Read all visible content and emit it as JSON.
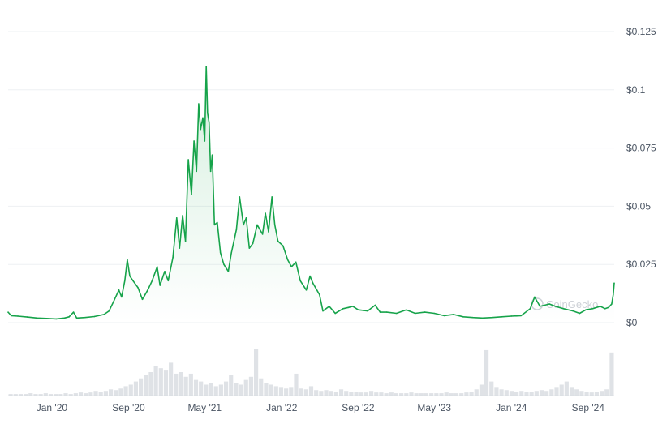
{
  "watermark": "CoinGecko",
  "colors": {
    "line": "#16a34a",
    "area_top": "#16a34a",
    "grid": "#eef0f3",
    "volume": "#d1d5db",
    "tick_text": "#4b5563"
  },
  "chart_data": {
    "type": "line",
    "title": "",
    "xlabel": "",
    "ylabel": "",
    "ylim": [
      0,
      0.125
    ],
    "xlim": [
      "2019-08-15",
      "2024-11-23"
    ],
    "grid": true,
    "y_ticks": [
      {
        "value": 0,
        "label": "$0"
      },
      {
        "value": 0.025,
        "label": "$0.025"
      },
      {
        "value": 0.05,
        "label": "$0.05"
      },
      {
        "value": 0.075,
        "label": "$0.075"
      },
      {
        "value": 0.1,
        "label": "$0.1"
      },
      {
        "value": 0.125,
        "label": "$0.125"
      }
    ],
    "x_ticks": [
      {
        "date": "2020-01-01",
        "label": "Jan '20"
      },
      {
        "date": "2020-09-01",
        "label": "Sep '20"
      },
      {
        "date": "2021-05-01",
        "label": "May '21"
      },
      {
        "date": "2022-01-01",
        "label": "Jan '22"
      },
      {
        "date": "2022-09-01",
        "label": "Sep '22"
      },
      {
        "date": "2023-05-01",
        "label": "May '23"
      },
      {
        "date": "2024-01-01",
        "label": "Jan '24"
      },
      {
        "date": "2024-09-01",
        "label": "Sep '24"
      }
    ],
    "series": [
      {
        "points": [
          [
            "2019-08-15",
            0.0045
          ],
          [
            "2019-08-25",
            0.003
          ],
          [
            "2019-09-15",
            0.0028
          ],
          [
            "2019-10-15",
            0.0024
          ],
          [
            "2019-11-15",
            0.002
          ],
          [
            "2019-12-15",
            0.0018
          ],
          [
            "2020-01-15",
            0.0016
          ],
          [
            "2020-02-10",
            0.002
          ],
          [
            "2020-02-25",
            0.0025
          ],
          [
            "2020-03-10",
            0.0045
          ],
          [
            "2020-03-20",
            0.002
          ],
          [
            "2020-04-15",
            0.0022
          ],
          [
            "2020-05-15",
            0.0026
          ],
          [
            "2020-06-15",
            0.0035
          ],
          [
            "2020-07-01",
            0.005
          ],
          [
            "2020-07-15",
            0.009
          ],
          [
            "2020-08-01",
            0.014
          ],
          [
            "2020-08-10",
            0.011
          ],
          [
            "2020-08-20",
            0.018
          ],
          [
            "2020-08-28",
            0.027
          ],
          [
            "2020-09-05",
            0.02
          ],
          [
            "2020-09-15",
            0.018
          ],
          [
            "2020-10-01",
            0.015
          ],
          [
            "2020-10-15",
            0.01
          ],
          [
            "2020-11-01",
            0.014
          ],
          [
            "2020-11-15",
            0.018
          ],
          [
            "2020-12-01",
            0.024
          ],
          [
            "2020-12-10",
            0.016
          ],
          [
            "2020-12-25",
            0.022
          ],
          [
            "2021-01-05",
            0.018
          ],
          [
            "2021-01-20",
            0.028
          ],
          [
            "2021-02-01",
            0.045
          ],
          [
            "2021-02-10",
            0.032
          ],
          [
            "2021-02-20",
            0.046
          ],
          [
            "2021-03-01",
            0.035
          ],
          [
            "2021-03-10",
            0.07
          ],
          [
            "2021-03-20",
            0.055
          ],
          [
            "2021-03-28",
            0.078
          ],
          [
            "2021-04-05",
            0.065
          ],
          [
            "2021-04-12",
            0.094
          ],
          [
            "2021-04-18",
            0.083
          ],
          [
            "2021-04-25",
            0.088
          ],
          [
            "2021-05-01",
            0.078
          ],
          [
            "2021-05-06",
            0.11
          ],
          [
            "2021-05-10",
            0.09
          ],
          [
            "2021-05-15",
            0.086
          ],
          [
            "2021-05-20",
            0.065
          ],
          [
            "2021-05-25",
            0.072
          ],
          [
            "2021-06-01",
            0.042
          ],
          [
            "2021-06-10",
            0.043
          ],
          [
            "2021-06-20",
            0.03
          ],
          [
            "2021-07-01",
            0.025
          ],
          [
            "2021-07-15",
            0.022
          ],
          [
            "2021-07-25",
            0.03
          ],
          [
            "2021-08-10",
            0.04
          ],
          [
            "2021-08-20",
            0.054
          ],
          [
            "2021-09-01",
            0.042
          ],
          [
            "2021-09-10",
            0.045
          ],
          [
            "2021-09-20",
            0.032
          ],
          [
            "2021-10-01",
            0.034
          ],
          [
            "2021-10-15",
            0.042
          ],
          [
            "2021-11-01",
            0.038
          ],
          [
            "2021-11-10",
            0.047
          ],
          [
            "2021-11-20",
            0.039
          ],
          [
            "2021-12-01",
            0.054
          ],
          [
            "2021-12-10",
            0.042
          ],
          [
            "2021-12-20",
            0.035
          ],
          [
            "2022-01-05",
            0.033
          ],
          [
            "2022-01-20",
            0.027
          ],
          [
            "2022-02-01",
            0.024
          ],
          [
            "2022-02-15",
            0.026
          ],
          [
            "2022-03-01",
            0.018
          ],
          [
            "2022-03-20",
            0.014
          ],
          [
            "2022-04-01",
            0.02
          ],
          [
            "2022-04-10",
            0.017
          ],
          [
            "2022-05-01",
            0.012
          ],
          [
            "2022-05-12",
            0.005
          ],
          [
            "2022-06-01",
            0.007
          ],
          [
            "2022-06-20",
            0.004
          ],
          [
            "2022-07-15",
            0.006
          ],
          [
            "2022-08-01",
            0.0065
          ],
          [
            "2022-08-15",
            0.007
          ],
          [
            "2022-09-01",
            0.0055
          ],
          [
            "2022-10-01",
            0.005
          ],
          [
            "2022-10-25",
            0.0075
          ],
          [
            "2022-11-10",
            0.0045
          ],
          [
            "2022-12-01",
            0.0045
          ],
          [
            "2023-01-01",
            0.004
          ],
          [
            "2023-02-01",
            0.0055
          ],
          [
            "2023-03-01",
            0.004
          ],
          [
            "2023-04-01",
            0.0045
          ],
          [
            "2023-05-01",
            0.004
          ],
          [
            "2023-06-01",
            0.003
          ],
          [
            "2023-07-01",
            0.0035
          ],
          [
            "2023-08-01",
            0.0025
          ],
          [
            "2023-09-01",
            0.0022
          ],
          [
            "2023-10-01",
            0.002
          ],
          [
            "2023-11-01",
            0.0022
          ],
          [
            "2023-12-01",
            0.0025
          ],
          [
            "2024-01-01",
            0.0028
          ],
          [
            "2024-02-01",
            0.003
          ],
          [
            "2024-03-01",
            0.006
          ],
          [
            "2024-03-15",
            0.011
          ],
          [
            "2024-04-01",
            0.007
          ],
          [
            "2024-05-01",
            0.008
          ],
          [
            "2024-05-20",
            0.007
          ],
          [
            "2024-06-15",
            0.006
          ],
          [
            "2024-07-15",
            0.005
          ],
          [
            "2024-08-05",
            0.004
          ],
          [
            "2024-08-25",
            0.0055
          ],
          [
            "2024-09-15",
            0.006
          ],
          [
            "2024-10-10",
            0.007
          ],
          [
            "2024-10-25",
            0.006
          ],
          [
            "2024-11-05",
            0.0065
          ],
          [
            "2024-11-15",
            0.008
          ],
          [
            "2024-11-20",
            0.012
          ],
          [
            "2024-11-23",
            0.017
          ]
        ]
      }
    ],
    "volume": [
      2,
      2,
      2,
      2,
      3,
      2,
      2,
      3,
      2,
      2,
      2,
      3,
      2,
      3,
      4,
      3,
      4,
      6,
      5,
      6,
      8,
      7,
      9,
      12,
      14,
      18,
      22,
      26,
      30,
      38,
      35,
      32,
      42,
      28,
      30,
      24,
      28,
      20,
      18,
      14,
      16,
      12,
      14,
      18,
      26,
      16,
      14,
      20,
      24,
      60,
      22,
      16,
      14,
      12,
      10,
      9,
      10,
      28,
      9,
      8,
      12,
      7,
      6,
      7,
      6,
      5,
      8,
      6,
      5,
      5,
      4,
      4,
      6,
      4,
      4,
      3,
      4,
      3,
      3,
      3,
      4,
      3,
      3,
      3,
      3,
      3,
      3,
      4,
      3,
      3,
      3,
      4,
      5,
      8,
      14,
      58,
      18,
      10,
      8,
      7,
      6,
      5,
      6,
      5,
      5,
      6,
      7,
      6,
      8,
      10,
      14,
      18,
      10,
      8,
      6,
      5,
      4,
      5,
      6,
      8,
      55
    ]
  }
}
